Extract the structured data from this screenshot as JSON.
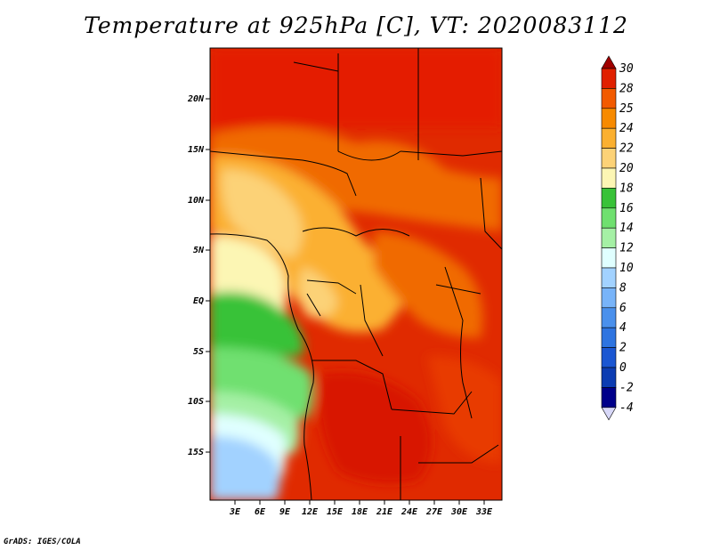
{
  "title": "Temperature at 925hPa [C], VT: 2020083112",
  "credit": "GrADS: IGES/COLA",
  "map": {
    "lon_ticks": [
      "3E",
      "6E",
      "9E",
      "12E",
      "15E",
      "18E",
      "21E",
      "24E",
      "27E",
      "30E",
      "33E"
    ],
    "lat_ticks": [
      "20N",
      "15N",
      "10N",
      "5N",
      "EQ",
      "5S",
      "10S",
      "15S"
    ]
  },
  "colorbar": {
    "labels": [
      "30",
      "28",
      "25",
      "24",
      "22",
      "20",
      "18",
      "16",
      "14",
      "12",
      "10",
      "8",
      "6",
      "4",
      "2",
      "0",
      "-2",
      "-4"
    ],
    "colors": [
      "#a00000",
      "#e02000",
      "#f25a00",
      "#f78a00",
      "#fbb030",
      "#fcd277",
      "#fcf6b4",
      "#38c238",
      "#6fe06f",
      "#a5f0a5",
      "#e0ffff",
      "#a2d2ff",
      "#78b4f9",
      "#4a90ec",
      "#2e74e0",
      "#1a56d2",
      "#0c3cb2",
      "#00008a",
      "#d8d8f8"
    ]
  }
}
